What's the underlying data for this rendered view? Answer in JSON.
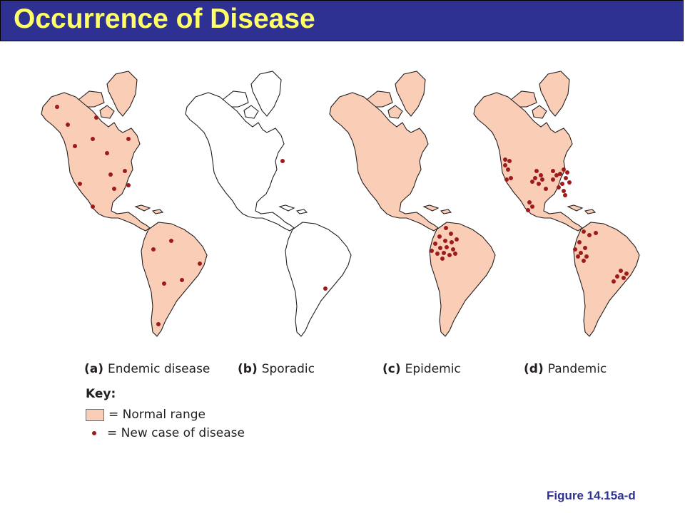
{
  "header": {
    "title": "Occurrence of Disease"
  },
  "panels": [
    {
      "letter": "(a)",
      "label": "Endemic disease",
      "shaded": true,
      "cases": [
        [
          80,
          150
        ],
        [
          95,
          175
        ],
        [
          105,
          205
        ],
        [
          130,
          195
        ],
        [
          135,
          165
        ],
        [
          150,
          215
        ],
        [
          180,
          195
        ],
        [
          155,
          245
        ],
        [
          175,
          240
        ],
        [
          180,
          260
        ],
        [
          160,
          265
        ],
        [
          112,
          258
        ],
        [
          130,
          290
        ],
        [
          215,
          350
        ],
        [
          240,
          338
        ],
        [
          280,
          370
        ],
        [
          255,
          393
        ],
        [
          230,
          398
        ],
        [
          222,
          455
        ]
      ]
    },
    {
      "letter": "(b)",
      "label": "Sporadic",
      "shaded": false,
      "cases": [
        [
          396,
          226
        ],
        [
          456,
          405
        ]
      ]
    },
    {
      "letter": "(c)",
      "label": "Epidemic",
      "shaded": true,
      "cases": [
        [
          625,
          320
        ],
        [
          632,
          328
        ],
        [
          616,
          332
        ],
        [
          624,
          338
        ],
        [
          633,
          340
        ],
        [
          640,
          336
        ],
        [
          610,
          342
        ],
        [
          617,
          348
        ],
        [
          626,
          347
        ],
        [
          635,
          350
        ],
        [
          605,
          352
        ],
        [
          613,
          356
        ],
        [
          622,
          355
        ],
        [
          630,
          358
        ],
        [
          638,
          356
        ],
        [
          620,
          363
        ]
      ]
    },
    {
      "letter": "(d)",
      "label": "Pandemic",
      "shaded": true,
      "cases": [
        [
          708,
          224
        ],
        [
          714,
          226
        ],
        [
          708,
          232
        ],
        [
          712,
          238
        ],
        [
          716,
          250
        ],
        [
          710,
          252
        ],
        [
          752,
          240
        ],
        [
          758,
          246
        ],
        [
          750,
          250
        ],
        [
          760,
          252
        ],
        [
          746,
          255
        ],
        [
          755,
          258
        ],
        [
          775,
          240
        ],
        [
          780,
          246
        ],
        [
          775,
          252
        ],
        [
          785,
          244
        ],
        [
          790,
          238
        ],
        [
          795,
          242
        ],
        [
          793,
          250
        ],
        [
          788,
          258
        ],
        [
          798,
          256
        ],
        [
          783,
          263
        ],
        [
          790,
          268
        ],
        [
          765,
          265
        ],
        [
          792,
          274
        ],
        [
          742,
          284
        ],
        [
          746,
          290
        ],
        [
          740,
          295
        ],
        [
          818,
          325
        ],
        [
          826,
          330
        ],
        [
          835,
          327
        ],
        [
          812,
          340
        ],
        [
          820,
          348
        ],
        [
          806,
          350
        ],
        [
          814,
          355
        ],
        [
          822,
          360
        ],
        [
          810,
          360
        ],
        [
          818,
          366
        ],
        [
          870,
          380
        ],
        [
          878,
          384
        ],
        [
          865,
          388
        ],
        [
          874,
          390
        ],
        [
          860,
          395
        ]
      ]
    }
  ],
  "key": {
    "title": "Key:",
    "normal_range": "= Normal range",
    "new_case": "= New case of disease"
  },
  "figure_ref": "Figure 14.15a-d",
  "colors": {
    "title_bar": "#2e3192",
    "title_text": "#ffff66",
    "land_fill": "#f9cdb6",
    "case_dot": "#9e1b1b",
    "outline": "#231f20"
  }
}
